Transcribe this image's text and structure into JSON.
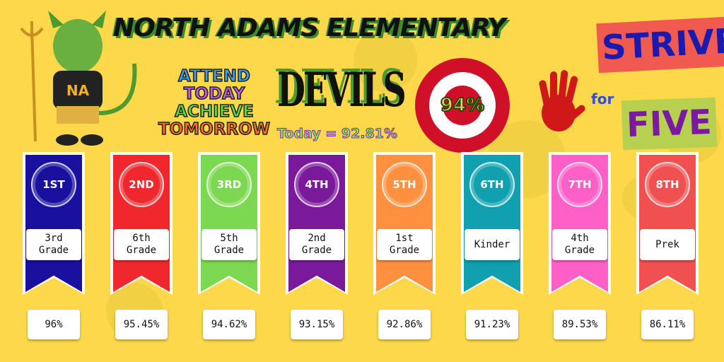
{
  "header": {
    "title": "NORTH ADAMS ELEMENTARY",
    "devils": "DEVILS",
    "today": "Today = 92.81%",
    "goal": "94%",
    "slogan": [
      "ATTEND",
      "TODAY",
      "ACHIEVE",
      "TOMORROW"
    ],
    "strive": "STRIVE",
    "for": "for",
    "five": "FIVE",
    "mascot_badge": "NA"
  },
  "colors": {
    "background": "#fcd84a",
    "accent_green": "#4d9a30",
    "target_red": "#d01028"
  },
  "rankings": [
    {
      "place": "1ST",
      "grade": "3rd Grade",
      "percent": "96%",
      "color": "#1a10a0"
    },
    {
      "place": "2ND",
      "grade": "6th Grade",
      "percent": "95.45%",
      "color": "#f0282d"
    },
    {
      "place": "3RD",
      "grade": "5th Grade",
      "percent": "94.62%",
      "color": "#7cd850"
    },
    {
      "place": "4TH",
      "grade": "2nd Grade",
      "percent": "93.15%",
      "color": "#7a1a9a"
    },
    {
      "place": "5TH",
      "grade": "1st Grade",
      "percent": "92.86%",
      "color": "#ff9040"
    },
    {
      "place": "6TH",
      "grade": "Kinder",
      "percent": "91.23%",
      "color": "#10a0b0"
    },
    {
      "place": "7TH",
      "grade": "4th Grade",
      "percent": "89.53%",
      "color": "#ff60c8"
    },
    {
      "place": "8TH",
      "grade": "Prek",
      "percent": "86.11%",
      "color": "#f05050"
    }
  ]
}
